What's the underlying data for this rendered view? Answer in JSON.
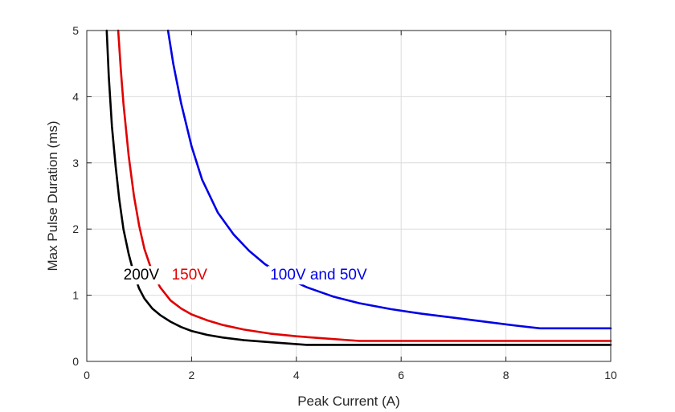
{
  "chart_data": {
    "type": "line",
    "title": "",
    "xlabel": "Peak Current (A)",
    "ylabel": "Max Pulse Duration (ms)",
    "xlim": [
      0,
      10
    ],
    "ylim": [
      0,
      5
    ],
    "xticks": [
      0,
      2,
      4,
      6,
      8,
      10
    ],
    "yticks": [
      0,
      1,
      2,
      3,
      4,
      5
    ],
    "xtick_labels": [
      "0",
      "2",
      "4",
      "6",
      "8",
      "10"
    ],
    "ytick_labels": [
      "0",
      "1",
      "2",
      "3",
      "4",
      "5"
    ],
    "grid": true,
    "series": [
      {
        "name": "200V",
        "color": "#000000",
        "x": [
          0.38,
          0.42,
          0.48,
          0.55,
          0.62,
          0.7,
          0.8,
          0.9,
          1.0,
          1.1,
          1.25,
          1.4,
          1.6,
          1.8,
          2.0,
          2.3,
          2.6,
          3.0,
          3.5,
          4.2,
          5.0,
          6.0,
          7.0,
          8.0,
          9.0,
          10.0
        ],
        "y": [
          5.0,
          4.3,
          3.55,
          2.95,
          2.45,
          2.0,
          1.62,
          1.32,
          1.1,
          0.95,
          0.8,
          0.7,
          0.6,
          0.52,
          0.46,
          0.4,
          0.36,
          0.32,
          0.29,
          0.25,
          0.25,
          0.25,
          0.25,
          0.25,
          0.25,
          0.25
        ]
      },
      {
        "name": "150V",
        "color": "#e00000",
        "x": [
          0.6,
          0.65,
          0.7,
          0.8,
          0.9,
          1.0,
          1.1,
          1.25,
          1.4,
          1.6,
          1.8,
          2.0,
          2.3,
          2.6,
          3.0,
          3.5,
          4.0,
          4.5,
          5.2,
          6.0,
          7.0,
          8.0,
          9.0,
          10.0
        ],
        "y": [
          5.0,
          4.4,
          3.9,
          3.1,
          2.5,
          2.05,
          1.7,
          1.35,
          1.12,
          0.92,
          0.8,
          0.71,
          0.62,
          0.55,
          0.48,
          0.42,
          0.38,
          0.35,
          0.31,
          0.31,
          0.31,
          0.31,
          0.31,
          0.31
        ]
      },
      {
        "name": "100V and 50V",
        "color": "#0000e6",
        "x": [
          1.55,
          1.65,
          1.8,
          2.0,
          2.2,
          2.5,
          2.8,
          3.1,
          3.4,
          3.8,
          4.2,
          4.7,
          5.2,
          5.8,
          6.4,
          7.0,
          7.6,
          8.2,
          8.65,
          9.0,
          9.5,
          10.0
        ],
        "y": [
          5.0,
          4.5,
          3.9,
          3.25,
          2.75,
          2.25,
          1.92,
          1.67,
          1.47,
          1.27,
          1.12,
          0.98,
          0.88,
          0.79,
          0.72,
          0.66,
          0.6,
          0.54,
          0.5,
          0.5,
          0.5,
          0.5
        ]
      }
    ],
    "annotations": [
      {
        "text": "200V",
        "color": "#000000",
        "x": 0.7,
        "y": 1.32
      },
      {
        "text": "150V",
        "color": "#e00000",
        "x": 1.62,
        "y": 1.32
      },
      {
        "text": "100V and 50V",
        "color": "#0000e6",
        "x": 3.5,
        "y": 1.32
      }
    ]
  }
}
